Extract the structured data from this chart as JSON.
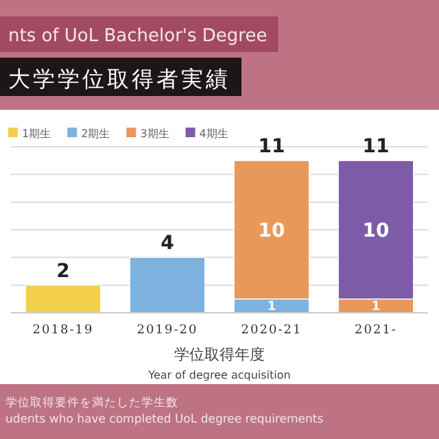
{
  "chart_data": {
    "type": "bar",
    "title": "nts of UoL Bachelor's Degree",
    "subtitle": "大学学位取得者実績",
    "xlabel": "学位取得年度\nYear of degree acquisition",
    "annotations": [
      "学位取得要件を満たした学生数",
      "udents who have completed UoL degree requirements"
    ],
    "categories": [
      "2018-19",
      "2019-20",
      "2020-21",
      "2021-"
    ],
    "stacked": true,
    "series": [
      {
        "name": "1期生",
        "color": "#f2d04a",
        "values": [
          2,
          null,
          null,
          null
        ],
        "value_labels": [
          null,
          null,
          null,
          null
        ]
      },
      {
        "name": "2期生",
        "color": "#7eb3e0",
        "values": [
          null,
          4,
          1,
          null
        ],
        "value_labels": [
          null,
          null,
          "1",
          null
        ]
      },
      {
        "name": "3期生",
        "color": "#e8995a",
        "values": [
          null,
          null,
          10,
          1
        ],
        "value_labels": [
          null,
          null,
          "10",
          "1"
        ]
      },
      {
        "name": "4期生",
        "color": "#7e5ba6",
        "values": [
          null,
          null,
          null,
          10
        ],
        "value_labels": [
          null,
          null,
          null,
          "10"
        ]
      }
    ],
    "totals": [
      "2",
      "4",
      "11",
      "11"
    ],
    "ylim": [
      0,
      12
    ],
    "yticks": [
      {
        "value": 0,
        "label": null
      },
      {
        "value": 2,
        "label": null
      },
      {
        "value": 4,
        "label": null
      },
      {
        "value": 6,
        "label": null
      },
      {
        "value": 8,
        "label": null
      },
      {
        "value": 10,
        "label": null
      },
      {
        "value": 12,
        "label": null
      }
    ],
    "tick_labels": "x",
    "grid": "y",
    "legend": "top left"
  }
}
